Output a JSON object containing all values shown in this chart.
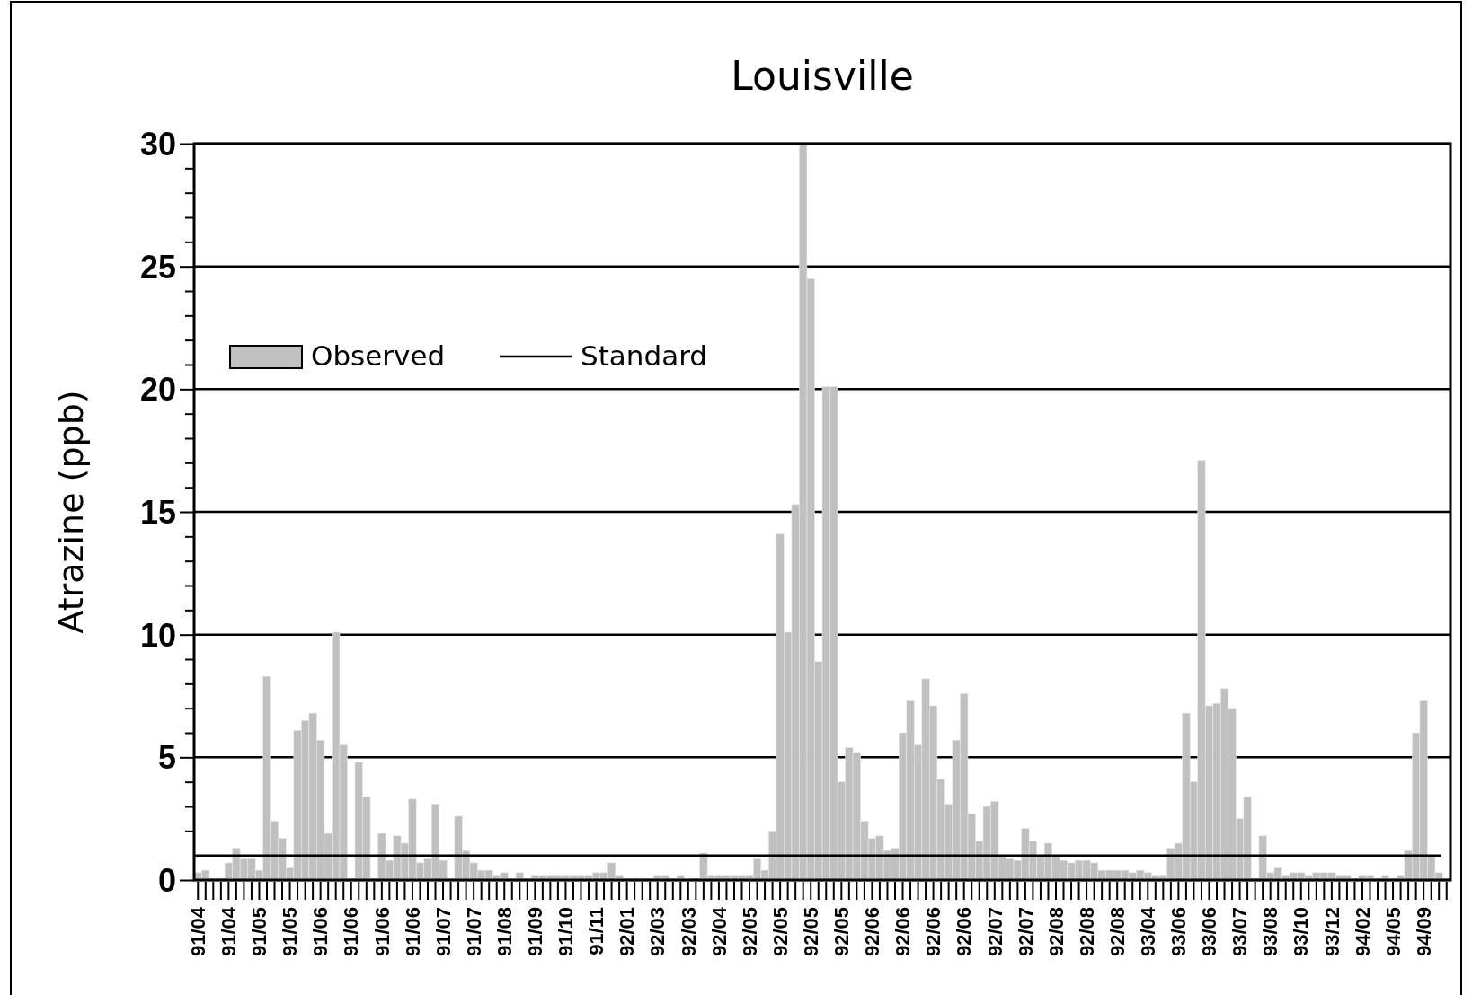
{
  "chart_data": {
    "type": "bar",
    "title": "Louisville",
    "ylabel": "Atrazine (ppb)",
    "categories": [
      "91/04",
      null,
      null,
      null,
      "91/04",
      null,
      null,
      null,
      "91/05",
      null,
      null,
      null,
      "91/05",
      null,
      null,
      null,
      "91/06",
      null,
      null,
      null,
      "91/06",
      null,
      null,
      null,
      "91/06",
      null,
      null,
      null,
      "91/06",
      null,
      null,
      null,
      "91/07",
      null,
      null,
      null,
      "91/07",
      null,
      null,
      null,
      "91/08",
      null,
      null,
      null,
      "91/09",
      null,
      null,
      null,
      "91/10",
      null,
      null,
      null,
      "91/11",
      null,
      null,
      null,
      "92/01",
      null,
      null,
      null,
      "92/03",
      null,
      null,
      null,
      "92/03",
      null,
      null,
      null,
      "92/04",
      null,
      null,
      null,
      "92/05",
      null,
      null,
      null,
      "92/05",
      null,
      null,
      null,
      "92/05",
      null,
      null,
      null,
      "92/05",
      null,
      null,
      null,
      "92/06",
      null,
      null,
      null,
      "92/06",
      null,
      null,
      null,
      "92/06",
      null,
      null,
      null,
      "92/06",
      null,
      null,
      null,
      "92/07",
      null,
      null,
      null,
      "92/07",
      null,
      null,
      null,
      "92/08",
      null,
      null,
      null,
      "92/08",
      null,
      null,
      null,
      "92/08",
      null,
      null,
      null,
      "93/04",
      null,
      null,
      null,
      "93/06",
      null,
      null,
      null,
      "93/06",
      null,
      null,
      null,
      "93/07",
      null,
      null,
      null,
      "93/08",
      null,
      null,
      null,
      "93/10",
      null,
      null,
      null,
      "93/12",
      null,
      null,
      null,
      "94/02",
      null,
      null,
      null,
      "94/05",
      null,
      null,
      null,
      "94/09",
      null,
      null,
      null
    ],
    "series": [
      {
        "name": "Observed",
        "color": "#c0c0c0",
        "values": [
          0.3,
          0.4,
          0,
          0,
          0.7,
          1.3,
          0.9,
          0.9,
          0.4,
          8.3,
          2.4,
          1.7,
          0.5,
          6.1,
          6.5,
          6.8,
          5.7,
          1.9,
          10.1,
          5.5,
          0,
          4.8,
          3.4,
          0,
          1.9,
          0.8,
          1.8,
          1.5,
          3.3,
          0.7,
          0.9,
          3.1,
          0.8,
          0,
          2.6,
          1.2,
          0.7,
          0.4,
          0.4,
          0.2,
          0.3,
          0,
          0.3,
          0,
          0.2,
          0.2,
          0.2,
          0.2,
          0.2,
          0.2,
          0.2,
          0.2,
          0.3,
          0.3,
          0.7,
          0.2,
          0,
          0,
          0,
          0,
          0.2,
          0.2,
          0,
          0.2,
          0,
          0,
          1.1,
          0.2,
          0.2,
          0.2,
          0.2,
          0.2,
          0.2,
          0.9,
          0.4,
          2.0,
          14.1,
          10.1,
          15.3,
          30,
          24.5,
          8.9,
          20.1,
          20.1,
          4.0,
          5.4,
          5.2,
          2.4,
          1.7,
          1.8,
          1.2,
          1.3,
          6.0,
          7.3,
          5.5,
          8.2,
          7.1,
          4.1,
          3.1,
          5.7,
          7.6,
          2.7,
          1.6,
          3.0,
          3.2,
          1.0,
          0.9,
          0.8,
          2.1,
          1.6,
          1.0,
          1.5,
          1.0,
          0.8,
          0.7,
          0.8,
          0.8,
          0.7,
          0.4,
          0.4,
          0.4,
          0.4,
          0.3,
          0.4,
          0.3,
          0.2,
          0.2,
          1.3,
          1.5,
          6.8,
          4.0,
          17.1,
          7.1,
          7.2,
          7.8,
          7.0,
          2.5,
          3.4,
          0,
          1.8,
          0.3,
          0.5,
          0.2,
          0.3,
          0.3,
          0.2,
          0.3,
          0.3,
          0.3,
          0.2,
          0.2,
          0,
          0.2,
          0.2,
          0,
          0.2,
          0,
          0.2,
          1.2,
          6.0,
          7.3,
          1.0,
          0.3,
          0
        ]
      }
    ],
    "ylim": [
      0,
      30
    ],
    "yticks": [
      0,
      {
        "value": 2,
        "label": null
      },
      {
        "value": 3,
        "label": null
      },
      {
        "value": 4,
        "label": null
      },
      5,
      {
        "value": 6,
        "label": null
      },
      {
        "value": 7,
        "label": null
      },
      {
        "value": 8,
        "label": null
      },
      {
        "value": 9,
        "label": null
      },
      10,
      {
        "value": 11,
        "label": null
      },
      {
        "value": 12,
        "label": null
      },
      {
        "value": 13,
        "label": null
      },
      {
        "value": 14,
        "label": null
      },
      15,
      {
        "value": 16,
        "label": null
      },
      {
        "value": 17,
        "label": null
      },
      {
        "value": 18,
        "label": null
      },
      {
        "value": 19,
        "label": null
      },
      20,
      {
        "value": 21,
        "label": null
      },
      {
        "value": 22,
        "label": null
      },
      {
        "value": 23,
        "label": null
      },
      {
        "value": 24,
        "label": null
      },
      25,
      {
        "value": 26,
        "label": null
      },
      {
        "value": 27,
        "label": null
      },
      {
        "value": 28,
        "label": null
      },
      {
        "value": 29,
        "label": null
      },
      30
    ],
    "ref_lines": [
      {
        "axis": "y",
        "value": 1,
        "label": "Standard",
        "color": "#000000",
        "line_style": "solid"
      }
    ],
    "grid": "y",
    "legend": "top left"
  }
}
